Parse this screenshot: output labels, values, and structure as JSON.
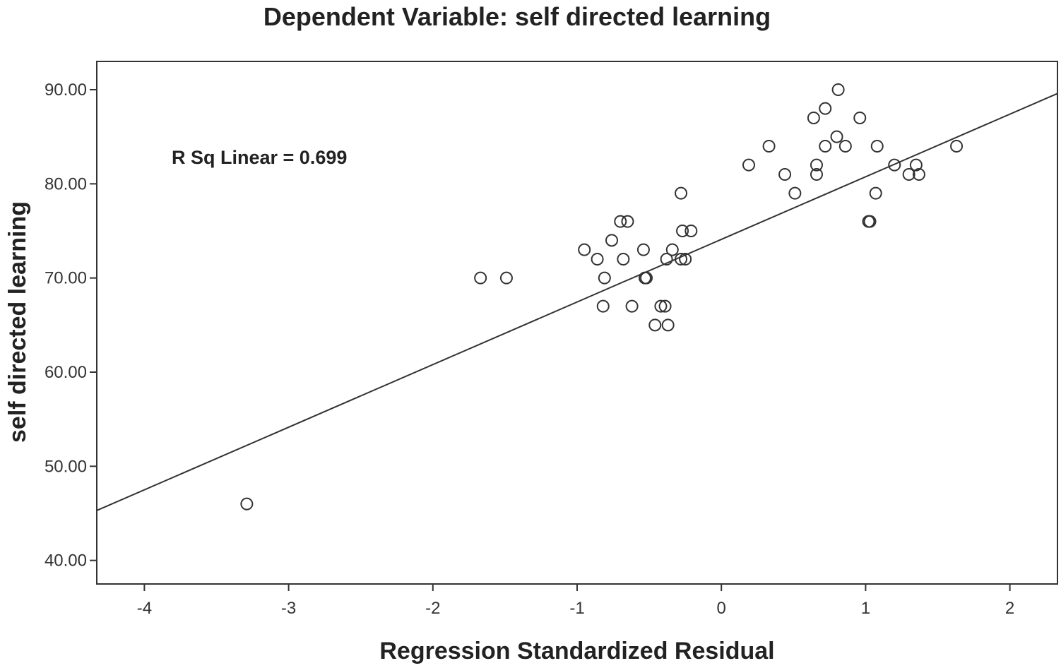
{
  "chart_data": {
    "type": "scatter",
    "title": "Dependent Variable: self directed learning",
    "xlabel": "Regression Standardized Residual",
    "ylabel": "self directed learning",
    "xlim": [
      -4.33,
      2.33
    ],
    "ylim": [
      37.5,
      93.0
    ],
    "xticks": [
      -4,
      -3,
      -2,
      -1,
      0,
      1,
      2
    ],
    "xtick_labels": [
      "-4",
      "-3",
      "-2",
      "-1",
      "0",
      "1",
      "2"
    ],
    "yticks": [
      40,
      50,
      60,
      70,
      80,
      90
    ],
    "ytick_labels": [
      "40.00",
      "50.00",
      "60.00",
      "70.00",
      "80.00",
      "90.00"
    ],
    "grid": false,
    "annotation": "R Sq Linear = 0.699",
    "fit_line": {
      "intercept": 74.1,
      "slope": 6.65
    },
    "points": [
      {
        "x": -3.29,
        "y": 46
      },
      {
        "x": -1.67,
        "y": 70
      },
      {
        "x": -1.49,
        "y": 70
      },
      {
        "x": -0.95,
        "y": 73
      },
      {
        "x": -0.86,
        "y": 72
      },
      {
        "x": -0.81,
        "y": 70
      },
      {
        "x": -0.82,
        "y": 67
      },
      {
        "x": -0.76,
        "y": 74
      },
      {
        "x": -0.7,
        "y": 76
      },
      {
        "x": -0.65,
        "y": 76
      },
      {
        "x": -0.68,
        "y": 72
      },
      {
        "x": -0.62,
        "y": 67
      },
      {
        "x": -0.54,
        "y": 73
      },
      {
        "x": -0.53,
        "y": 70
      },
      {
        "x": -0.52,
        "y": 70
      },
      {
        "x": -0.46,
        "y": 65
      },
      {
        "x": -0.42,
        "y": 67
      },
      {
        "x": -0.39,
        "y": 67
      },
      {
        "x": -0.38,
        "y": 72
      },
      {
        "x": -0.37,
        "y": 65
      },
      {
        "x": -0.34,
        "y": 73
      },
      {
        "x": -0.28,
        "y": 79
      },
      {
        "x": -0.27,
        "y": 75
      },
      {
        "x": -0.28,
        "y": 72
      },
      {
        "x": -0.25,
        "y": 72
      },
      {
        "x": -0.21,
        "y": 75
      },
      {
        "x": 0.19,
        "y": 82
      },
      {
        "x": 0.33,
        "y": 84
      },
      {
        "x": 0.44,
        "y": 81
      },
      {
        "x": 0.51,
        "y": 79
      },
      {
        "x": 0.64,
        "y": 87
      },
      {
        "x": 0.66,
        "y": 82
      },
      {
        "x": 0.66,
        "y": 81
      },
      {
        "x": 0.72,
        "y": 88
      },
      {
        "x": 0.72,
        "y": 84
      },
      {
        "x": 0.8,
        "y": 85
      },
      {
        "x": 0.81,
        "y": 90
      },
      {
        "x": 0.86,
        "y": 84
      },
      {
        "x": 0.96,
        "y": 87
      },
      {
        "x": 1.02,
        "y": 76
      },
      {
        "x": 1.03,
        "y": 76
      },
      {
        "x": 1.07,
        "y": 79
      },
      {
        "x": 1.08,
        "y": 84
      },
      {
        "x": 1.2,
        "y": 82
      },
      {
        "x": 1.3,
        "y": 81
      },
      {
        "x": 1.35,
        "y": 82
      },
      {
        "x": 1.37,
        "y": 81
      },
      {
        "x": 1.63,
        "y": 84
      }
    ]
  }
}
